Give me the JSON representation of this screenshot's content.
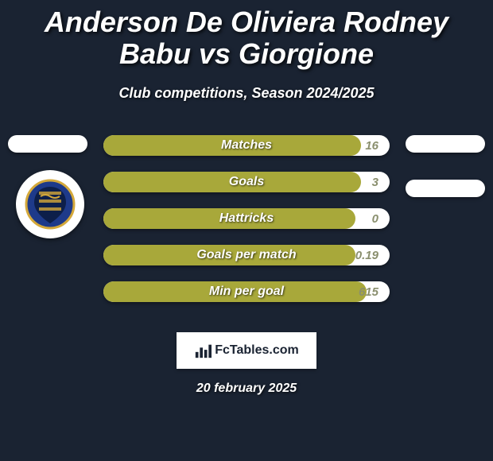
{
  "colors": {
    "background": "#1a2332",
    "bar_fill": "#a8a83a",
    "bar_bg": "#ffffff",
    "value_text": "#8a8f6e",
    "crest_blue": "#1e3a8a",
    "crest_gold": "#d4a83a"
  },
  "title": "Anderson De Oliviera Rodney Babu vs Giorgione",
  "subtitle": "Club competitions, Season 2024/2025",
  "bars": [
    {
      "label": "Matches",
      "value": "16",
      "fill_pct": 90
    },
    {
      "label": "Goals",
      "value": "3",
      "fill_pct": 90
    },
    {
      "label": "Hattricks",
      "value": "0",
      "fill_pct": 88
    },
    {
      "label": "Goals per match",
      "value": "0.19",
      "fill_pct": 88
    },
    {
      "label": "Min per goal",
      "value": "615",
      "fill_pct": 92
    }
  ],
  "side_pills": {
    "left_top": true,
    "right_top": true,
    "right_mid": true
  },
  "crest_name": "U.S. LATINA CALCIO",
  "logo": {
    "text": "FcTables.com"
  },
  "date": "20 february 2025"
}
